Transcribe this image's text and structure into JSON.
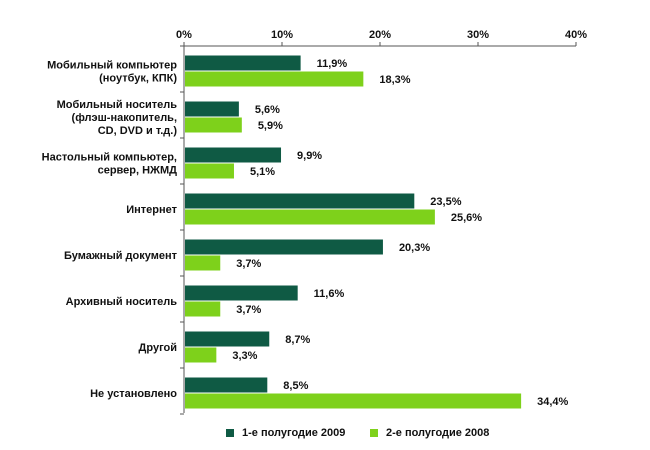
{
  "chart_data": {
    "type": "bar",
    "orientation": "horizontal",
    "xlim": [
      0,
      40
    ],
    "x_ticks": [
      "0%",
      "10%",
      "20%",
      "30%",
      "40%"
    ],
    "x_axis_position": "top",
    "grid": false,
    "categories": [
      [
        "Мобильный компьютер",
        "(ноутбук, КПК)"
      ],
      [
        "Мобильный носитель",
        "(флэш-накопитель,",
        "CD, DVD и т.д.)"
      ],
      [
        "Настольный компьютер,",
        "сервер, НЖМД"
      ],
      [
        "Интернет"
      ],
      [
        "Бумажный документ"
      ],
      [
        "Архивный носитель"
      ],
      [
        "Другой"
      ],
      [
        "Не установлено"
      ]
    ],
    "series": [
      {
        "name": "1-е полугодие 2009",
        "color": "#0f5a44",
        "values": [
          11.9,
          5.6,
          9.9,
          23.5,
          20.3,
          11.6,
          8.7,
          8.5
        ],
        "labels": [
          "11,9%",
          "5,6%",
          "9,9%",
          "23,5%",
          "20,3%",
          "11,6%",
          "8,7%",
          "8,5%"
        ]
      },
      {
        "name": "2-е полугодие 2008",
        "color": "#7ed11b",
        "values": [
          18.3,
          5.9,
          5.1,
          25.6,
          3.7,
          3.7,
          3.3,
          34.4
        ],
        "labels": [
          "18,3%",
          "5,9%",
          "5,1%",
          "25,6%",
          "3,7%",
          "3,7%",
          "3,3%",
          "34,4%"
        ]
      }
    ],
    "legend_position": "bottom"
  }
}
